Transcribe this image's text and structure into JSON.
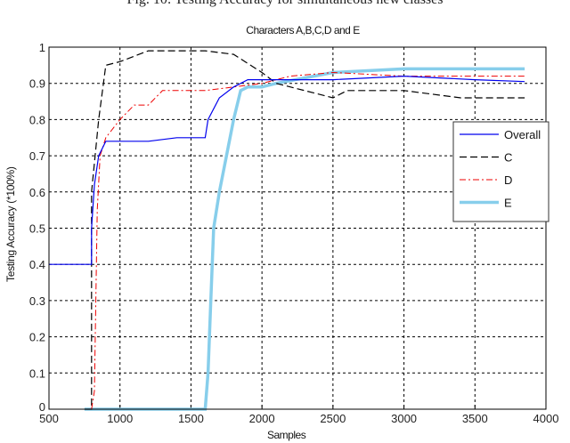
{
  "caption": "Fig. 10: Testing Accuracy for simultaneous new classes",
  "chart_data": {
    "type": "line",
    "title": "Characters A,B,C,D and E",
    "xlabel": "Samples",
    "ylabel": "Testing Accuracy (*100%)",
    "xlim": [
      500,
      4000
    ],
    "ylim": [
      0,
      1
    ],
    "xticks": [
      "500",
      "1000",
      "1500",
      "2000",
      "2500",
      "3000",
      "3500",
      "4000"
    ],
    "yticks": [
      "0",
      "0.1",
      "0.2",
      "0.3",
      "0.4",
      "0.5",
      "0.6",
      "0.7",
      "0.8",
      "0.9",
      "1"
    ],
    "grid": true,
    "legend_position": "right-center",
    "series": [
      {
        "name": "Overall",
        "color": "#0000ee",
        "style": "solid",
        "x": [
          500,
          800,
          800,
          820,
          850,
          900,
          1000,
          1200,
          1400,
          1600,
          1620,
          1700,
          1800,
          1900,
          2000,
          2200,
          2500,
          3000,
          3500,
          3850
        ],
        "y": [
          0.4,
          0.4,
          0.5,
          0.62,
          0.7,
          0.74,
          0.74,
          0.74,
          0.75,
          0.75,
          0.8,
          0.86,
          0.89,
          0.91,
          0.91,
          0.91,
          0.91,
          0.92,
          0.91,
          0.905
        ]
      },
      {
        "name": "C",
        "color": "#000000",
        "style": "dashed",
        "x": [
          750,
          800,
          800,
          850,
          900,
          1000,
          1200,
          1400,
          1600,
          1800,
          2000,
          2100,
          2300,
          2500,
          2600,
          3000,
          3400,
          3850
        ],
        "y": [
          0.0,
          0.0,
          0.6,
          0.8,
          0.95,
          0.96,
          0.99,
          0.99,
          0.99,
          0.98,
          0.93,
          0.9,
          0.88,
          0.86,
          0.88,
          0.88,
          0.86,
          0.86
        ]
      },
      {
        "name": "D",
        "color": "#ee0000",
        "style": "dashdot",
        "x": [
          800,
          820,
          830,
          840,
          860,
          900,
          1000,
          1100,
          1200,
          1300,
          1400,
          1600,
          1800,
          2000,
          2200,
          2500,
          3000,
          3500,
          3850
        ],
        "y": [
          0.0,
          0.05,
          0.3,
          0.55,
          0.7,
          0.75,
          0.8,
          0.84,
          0.84,
          0.88,
          0.88,
          0.88,
          0.89,
          0.9,
          0.92,
          0.93,
          0.92,
          0.92,
          0.92
        ]
      },
      {
        "name": "E",
        "color": "#87ceeb",
        "style": "solid-thick",
        "x": [
          750,
          1600,
          1620,
          1640,
          1660,
          1700,
          1750,
          1800,
          1850,
          1900,
          2000,
          2100,
          2500,
          3000,
          3500,
          3850
        ],
        "y": [
          0.0,
          0.0,
          0.1,
          0.3,
          0.5,
          0.6,
          0.7,
          0.8,
          0.88,
          0.89,
          0.89,
          0.9,
          0.93,
          0.94,
          0.94,
          0.94
        ]
      }
    ]
  },
  "legend": {
    "items": [
      {
        "label": "Overall"
      },
      {
        "label": "C"
      },
      {
        "label": "D"
      },
      {
        "label": "E"
      }
    ]
  }
}
